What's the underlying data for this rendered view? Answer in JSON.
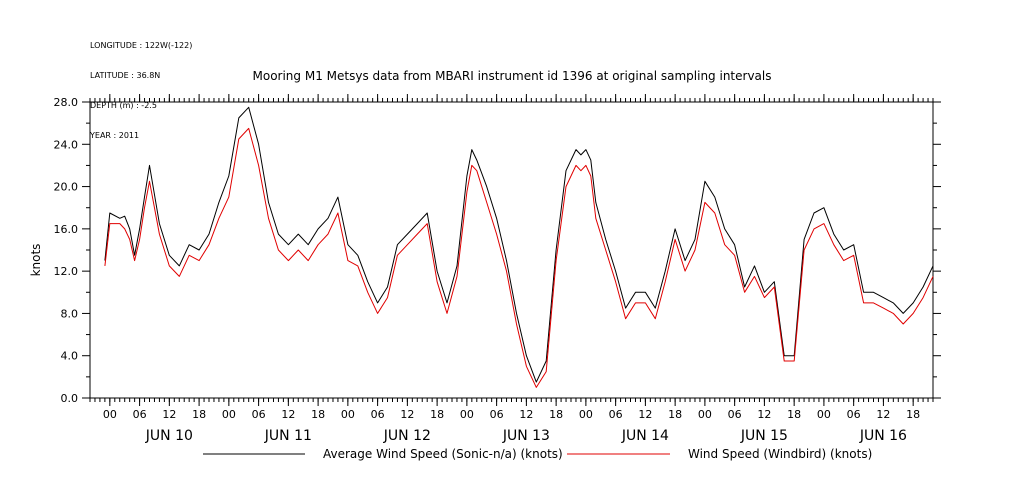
{
  "header": {
    "lines": [
      "LONGITUDE : 122W(-122)",
      "LATITUDE : 36.8N",
      "DEPTH (m) : -2.5",
      "YEAR : 2011"
    ]
  },
  "chart_data": {
    "type": "line",
    "title": "Mooring M1 Metsys data from MBARI instrument id 1396 at original sampling intervals",
    "ylabel": "knots",
    "xlabel": "",
    "ylim": [
      0,
      28
    ],
    "y_ticks": [
      "0.0",
      "4.0",
      "8.0",
      "12.0",
      "16.0",
      "20.0",
      "24.0",
      "28.0"
    ],
    "x_range_hours": [
      -4,
      166
    ],
    "x_hour_ticks": [
      "00",
      "06",
      "12",
      "18",
      "00",
      "06",
      "12",
      "18",
      "00",
      "06",
      "12",
      "18",
      "00",
      "06",
      "12",
      "18",
      "00",
      "06",
      "12",
      "18",
      "00",
      "06",
      "12",
      "18",
      "00",
      "06",
      "12",
      "18"
    ],
    "x_day_labels": [
      "JUN 10",
      "JUN 11",
      "JUN 12",
      "JUN 13",
      "JUN 14",
      "JUN 15",
      "JUN 16"
    ],
    "grid": false,
    "legend_position": "bottom",
    "series": [
      {
        "name": "Average Wind Speed (Sonic-n/a) (knots)",
        "color": "#000000",
        "x": [
          -1,
          0,
          2,
          3,
          4,
          5,
          6,
          7,
          8,
          10,
          12,
          14,
          16,
          18,
          20,
          22,
          24,
          26,
          28,
          30,
          32,
          34,
          36,
          38,
          40,
          42,
          44,
          46,
          48,
          50,
          52,
          54,
          56,
          58,
          60,
          62,
          64,
          66,
          68,
          70,
          72,
          73,
          74,
          76,
          78,
          80,
          82,
          84,
          86,
          88,
          90,
          92,
          94,
          95,
          96,
          97,
          98,
          100,
          102,
          104,
          106,
          108,
          110,
          112,
          114,
          116,
          118,
          120,
          122,
          124,
          126,
          128,
          130,
          132,
          134,
          136,
          138,
          140,
          142,
          144,
          146,
          148,
          150,
          152,
          154,
          156,
          158,
          160,
          162,
          164,
          166
        ],
        "y": [
          13.0,
          17.5,
          17.0,
          17.2,
          16.0,
          13.5,
          16.0,
          19.0,
          22.0,
          16.5,
          13.5,
          12.5,
          14.5,
          14.0,
          15.5,
          18.5,
          21.0,
          26.5,
          27.5,
          24.0,
          18.5,
          15.5,
          14.5,
          15.5,
          14.5,
          16.0,
          17.0,
          19.0,
          14.5,
          13.5,
          11.0,
          9.0,
          10.5,
          14.5,
          15.5,
          16.5,
          17.5,
          12.0,
          9.0,
          12.5,
          21.0,
          23.5,
          22.5,
          20.0,
          17.0,
          13.0,
          8.0,
          4.0,
          1.5,
          3.5,
          14.0,
          21.5,
          23.5,
          23.0,
          23.5,
          22.5,
          18.5,
          15.0,
          12.0,
          8.5,
          10.0,
          10.0,
          8.5,
          12.0,
          16.0,
          13.0,
          15.0,
          20.5,
          19.0,
          16.0,
          14.5,
          10.5,
          12.5,
          10.0,
          11.0,
          4.0,
          4.0,
          15.0,
          17.5,
          18.0,
          15.5,
          14.0,
          14.5,
          10.0,
          10.0,
          9.5,
          9.0,
          8.0,
          9.0,
          10.5,
          12.5
        ]
      },
      {
        "name": "Wind Speed (Windbird) (knots)",
        "color": "#e00000",
        "x": [
          -1,
          0,
          2,
          3,
          4,
          5,
          6,
          7,
          8,
          10,
          12,
          14,
          16,
          18,
          20,
          22,
          24,
          26,
          28,
          30,
          32,
          34,
          36,
          38,
          40,
          42,
          44,
          46,
          48,
          50,
          52,
          54,
          56,
          58,
          60,
          62,
          64,
          66,
          68,
          70,
          72,
          73,
          74,
          76,
          78,
          80,
          82,
          84,
          86,
          88,
          90,
          92,
          94,
          95,
          96,
          97,
          98,
          100,
          102,
          104,
          106,
          108,
          110,
          112,
          114,
          116,
          118,
          120,
          122,
          124,
          126,
          128,
          130,
          132,
          134,
          136,
          138,
          140,
          142,
          144,
          146,
          148,
          150,
          152,
          154,
          156,
          158,
          160,
          162,
          164,
          166
        ],
        "y": [
          12.5,
          16.5,
          16.5,
          16.0,
          15.0,
          13.0,
          15.0,
          18.0,
          20.5,
          15.5,
          12.5,
          11.5,
          13.5,
          13.0,
          14.5,
          17.0,
          19.0,
          24.5,
          25.5,
          22.0,
          17.0,
          14.0,
          13.0,
          14.0,
          13.0,
          14.5,
          15.5,
          17.5,
          13.0,
          12.5,
          10.0,
          8.0,
          9.5,
          13.5,
          14.5,
          15.5,
          16.5,
          11.0,
          8.0,
          11.5,
          19.5,
          22.0,
          21.5,
          18.5,
          15.5,
          12.0,
          7.0,
          3.0,
          1.0,
          2.5,
          13.0,
          20.0,
          22.0,
          21.5,
          22.0,
          21.0,
          17.0,
          14.0,
          11.0,
          7.5,
          9.0,
          9.0,
          7.5,
          11.0,
          15.0,
          12.0,
          14.0,
          18.5,
          17.5,
          14.5,
          13.5,
          10.0,
          11.5,
          9.5,
          10.5,
          3.5,
          3.5,
          14.0,
          16.0,
          16.5,
          14.5,
          13.0,
          13.5,
          9.0,
          9.0,
          8.5,
          8.0,
          7.0,
          8.0,
          9.5,
          11.5
        ]
      }
    ]
  }
}
